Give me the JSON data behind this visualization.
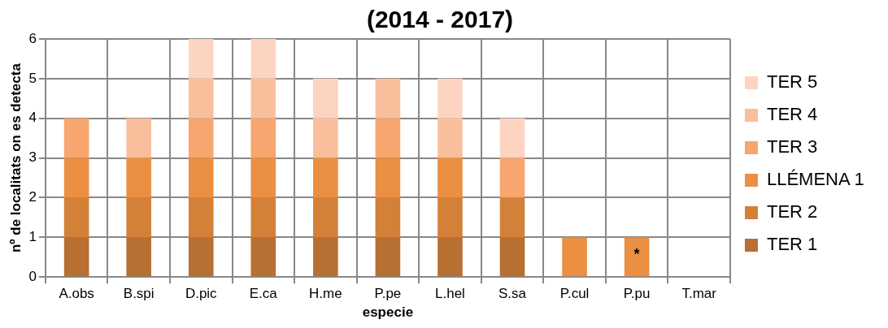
{
  "chart_data": {
    "type": "bar",
    "title": "(2014 - 2017)",
    "xlabel": "especie",
    "ylabel": "nº de localitats on es detecta",
    "categories": [
      "A.obs",
      "B.spi",
      "D.pic",
      "E.ca",
      "H.me",
      "P.pe",
      "L.hel",
      "S.sa",
      "P.cul",
      "P.pu",
      "T.mar"
    ],
    "stacked": true,
    "series": [
      {
        "name": "TER 1",
        "color": "#b86f32",
        "values": [
          1,
          1,
          1,
          1,
          1,
          1,
          1,
          1,
          0,
          0,
          0
        ]
      },
      {
        "name": "TER 2",
        "color": "#d38039",
        "values": [
          1,
          1,
          1,
          1,
          1,
          1,
          1,
          1,
          0,
          0,
          0
        ]
      },
      {
        "name": "LLÉMENA 1",
        "color": "#eb8f42",
        "values": [
          1,
          1,
          1,
          1,
          1,
          1,
          1,
          0,
          1,
          1,
          0
        ]
      },
      {
        "name": "TER 3",
        "color": "#f6a66e",
        "values": [
          1,
          0,
          1,
          1,
          0,
          1,
          0,
          1,
          0,
          0,
          0
        ]
      },
      {
        "name": "TER 4",
        "color": "#f9bf9c",
        "values": [
          0,
          1,
          1,
          1,
          1,
          1,
          1,
          0,
          0,
          0,
          0
        ]
      },
      {
        "name": "TER 5",
        "color": "#fdd4c1",
        "values": [
          0,
          0,
          1,
          1,
          1,
          0,
          1,
          1,
          0,
          0,
          0
        ]
      }
    ],
    "ylim": [
      0,
      6
    ],
    "yticks": [
      0,
      1,
      2,
      3,
      4,
      5,
      6
    ],
    "grid": true,
    "legend": "right",
    "annotations": [
      {
        "text": "*",
        "x": "P.pu",
        "y": 1
      }
    ]
  }
}
